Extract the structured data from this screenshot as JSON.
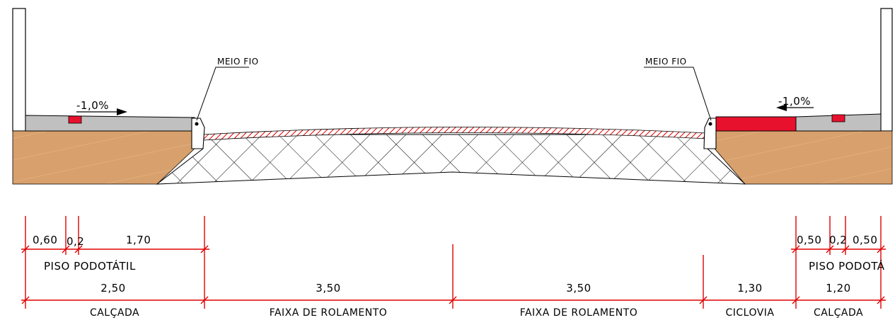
{
  "section": {
    "left_slope_label": "-1,0%",
    "right_slope_label": "-1,0%",
    "curb_label_left": "MEIO FIO",
    "curb_label_right": "MEIO FIO"
  },
  "dimensions": {
    "left_sub": [
      "0,60",
      "0,2",
      "1,70"
    ],
    "right_sub": [
      "0,50",
      "0,2",
      "0,50"
    ],
    "tactile_left": "PISO PODOTÁTIL",
    "tactile_right": "PISO PODOTÁ",
    "main_values": [
      "2,50",
      "3,50",
      "3,50",
      "1,30",
      "1,20"
    ],
    "main_labels": [
      "CALÇADA",
      "FAIXA DE ROLAMENTO",
      "FAIXA DE ROLAMENTO",
      "CICLOVIA",
      "CALÇADA"
    ]
  },
  "colors": {
    "soil": "#d8a06c",
    "sidewalk": "#c0c0c0",
    "tactile_tile": "#e8112d",
    "bike_lane": "#e8112d",
    "dimension": "#e00000"
  }
}
